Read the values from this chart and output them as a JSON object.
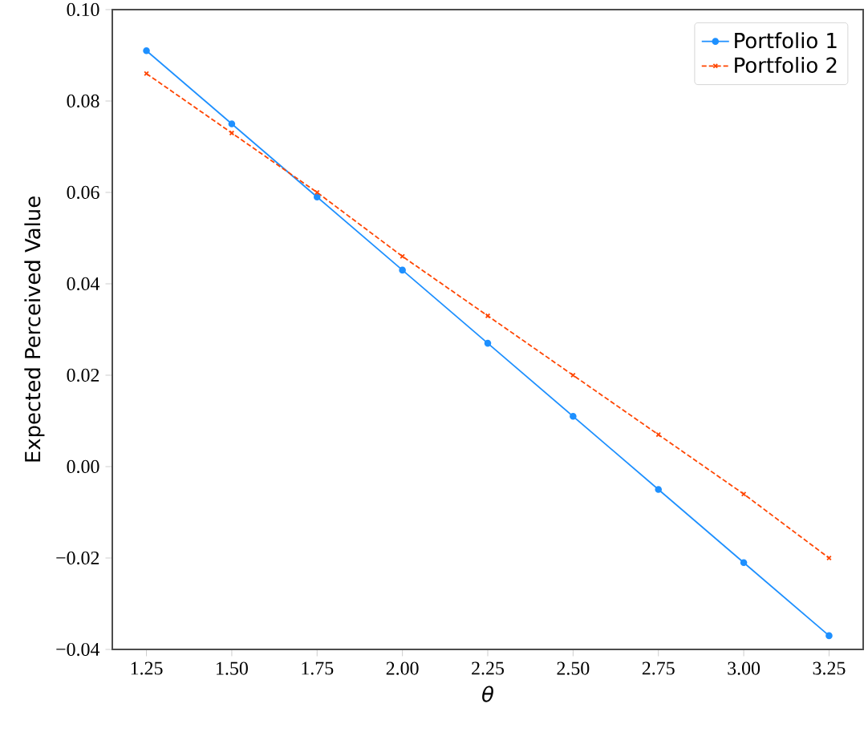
{
  "chart_data": {
    "type": "line",
    "xlabel": "θ",
    "ylabel": "Expected Perceived Value",
    "x": [
      1.25,
      1.5,
      1.75,
      2.0,
      2.25,
      2.5,
      2.75,
      3.0,
      3.25
    ],
    "series": [
      {
        "name": "Portfolio 1",
        "color": "#1e90ff",
        "marker": "circle",
        "line_style": "solid",
        "values": [
          0.091,
          0.075,
          0.059,
          0.043,
          0.027,
          0.011,
          -0.005,
          -0.021,
          -0.037
        ]
      },
      {
        "name": "Portfolio 2",
        "color": "#ff4500",
        "marker": "cross",
        "line_style": "dashed",
        "values": [
          0.086,
          0.073,
          0.06,
          0.046,
          0.033,
          0.02,
          0.007,
          -0.006,
          -0.02
        ]
      }
    ],
    "xlim": [
      1.15,
      3.35
    ],
    "ylim": [
      -0.04,
      0.1
    ],
    "xticks": [
      {
        "value": 1.25,
        "label": "1.25"
      },
      {
        "value": 1.5,
        "label": "1.50"
      },
      {
        "value": 1.75,
        "label": "1.75"
      },
      {
        "value": 2.0,
        "label": "2.00"
      },
      {
        "value": 2.25,
        "label": "2.25"
      },
      {
        "value": 2.5,
        "label": "2.50"
      },
      {
        "value": 2.75,
        "label": "2.75"
      },
      {
        "value": 3.0,
        "label": "3.00"
      },
      {
        "value": 3.25,
        "label": "3.25"
      }
    ],
    "yticks": [
      {
        "value": -0.04,
        "label": "−0.04"
      },
      {
        "value": -0.02,
        "label": "−0.02"
      },
      {
        "value": 0.0,
        "label": "0.00"
      },
      {
        "value": 0.02,
        "label": "0.02"
      },
      {
        "value": 0.04,
        "label": "0.04"
      },
      {
        "value": 0.06,
        "label": "0.06"
      },
      {
        "value": 0.08,
        "label": "0.08"
      },
      {
        "value": 0.1,
        "label": "0.10"
      }
    ],
    "legend": "top right",
    "grid": false
  }
}
